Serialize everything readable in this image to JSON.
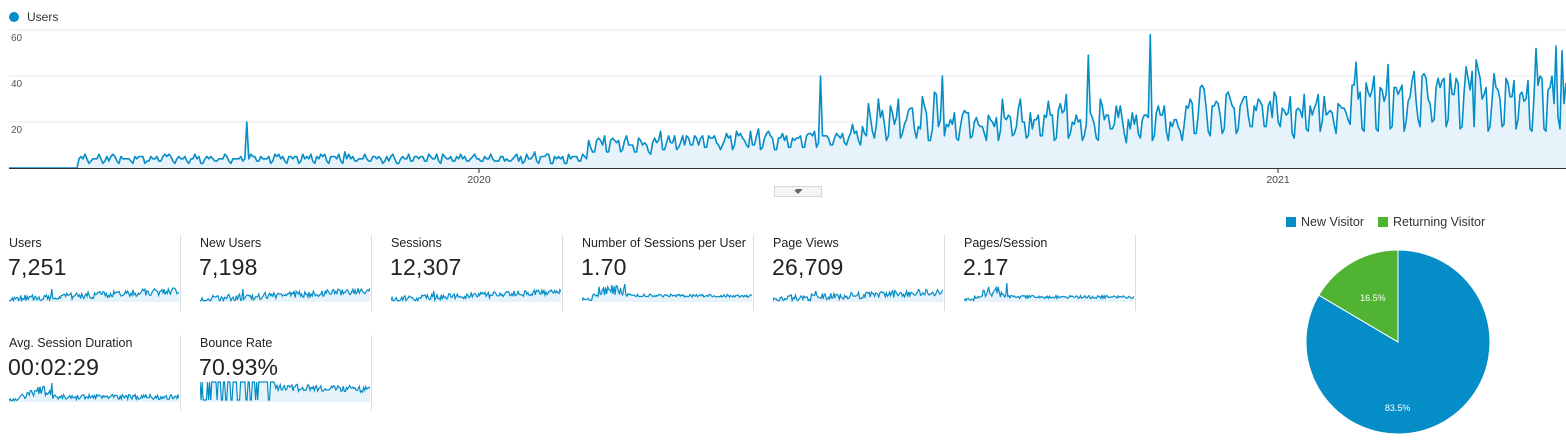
{
  "colors": {
    "primary": "#058dc7",
    "secondary": "#50b432",
    "grid": "#e8e8e8",
    "fill": "#e6f3fa"
  },
  "chart_data": [
    {
      "type": "line",
      "series": [
        {
          "name": "Users",
          "values": []
        }
      ],
      "y_ticks": [
        "60",
        "40",
        "20"
      ],
      "ylim": [
        0,
        60
      ],
      "x_ticks": [
        "2020",
        "2021"
      ],
      "grid": true,
      "legend": "top-left"
    },
    {
      "type": "pie",
      "categories": [
        "New Visitor",
        "Returning Visitor"
      ],
      "values": [
        83.5,
        16.5
      ],
      "labels": [
        "83.5%",
        "16.5%"
      ],
      "legend": "top"
    }
  ],
  "metrics": [
    {
      "label": "Users",
      "value": "7,251"
    },
    {
      "label": "New Users",
      "value": "7,198"
    },
    {
      "label": "Sessions",
      "value": "12,307"
    },
    {
      "label": "Number of Sessions per User",
      "value": "1.70"
    },
    {
      "label": "Page Views",
      "value": "26,709"
    },
    {
      "label": "Pages/Session",
      "value": "2.17"
    },
    {
      "label": "Avg. Session Duration",
      "value": "00:02:29"
    },
    {
      "label": "Bounce Rate",
      "value": "70.93%"
    }
  ]
}
